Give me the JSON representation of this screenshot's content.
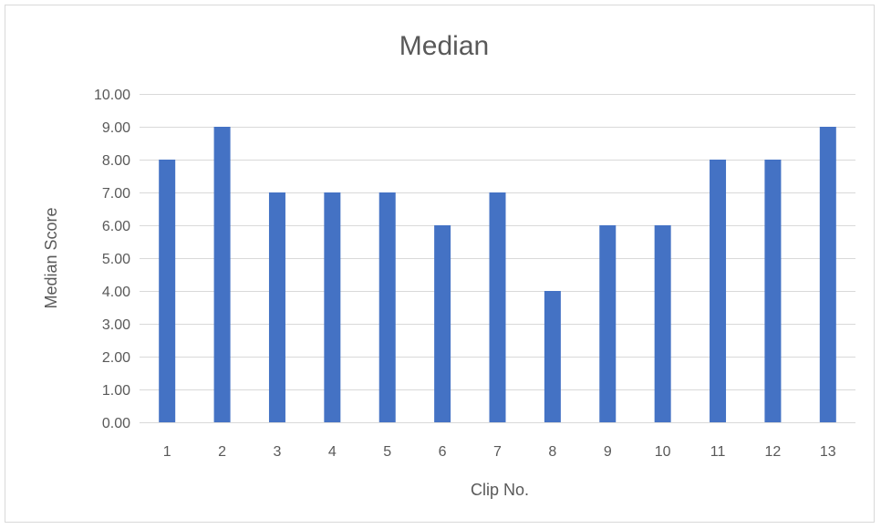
{
  "chart_data": {
    "type": "bar",
    "title": "Median",
    "xlabel": "Clip No.",
    "ylabel": "Median Score",
    "categories": [
      "1",
      "2",
      "3",
      "4",
      "5",
      "6",
      "7",
      "8",
      "9",
      "10",
      "11",
      "12",
      "13"
    ],
    "series": [
      {
        "values": [
          8,
          9,
          7,
          7,
          7,
          6,
          7,
          4,
          6,
          6,
          8,
          8,
          9
        ]
      }
    ],
    "ylim": [
      0,
      10
    ],
    "y_ticks": [
      "0.00",
      "1.00",
      "2.00",
      "3.00",
      "4.00",
      "5.00",
      "6.00",
      "7.00",
      "8.00",
      "9.00",
      "10.00"
    ],
    "grid": true,
    "legend": "none",
    "colors": {
      "bar": "#4472c4",
      "grid": "#d9d9d9",
      "text": "#595959"
    }
  }
}
